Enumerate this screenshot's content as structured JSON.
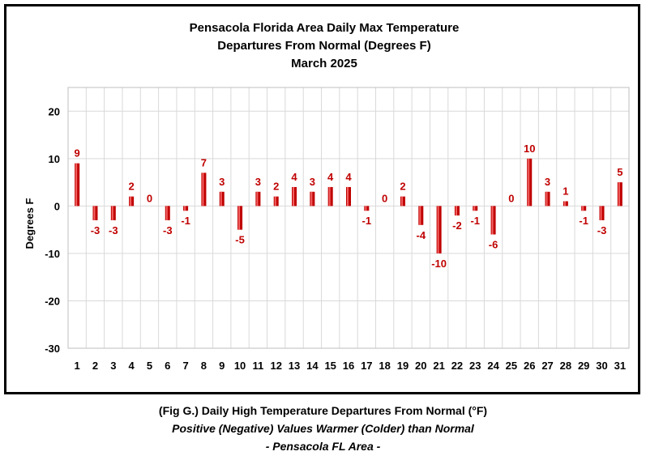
{
  "chart_data": {
    "type": "bar",
    "title": [
      "Pensacola Florida Area Daily Max Temperature",
      "Departures From Normal (Degrees F)",
      "March 2025"
    ],
    "xlabel": "",
    "ylabel": "Degrees F",
    "categories": [
      "1",
      "2",
      "3",
      "4",
      "5",
      "6",
      "7",
      "8",
      "9",
      "10",
      "11",
      "12",
      "13",
      "14",
      "15",
      "16",
      "17",
      "18",
      "19",
      "20",
      "21",
      "22",
      "23",
      "24",
      "25",
      "26",
      "27",
      "28",
      "29",
      "30",
      "31"
    ],
    "values": [
      9,
      -3,
      -3,
      2,
      0,
      -3,
      -1,
      7,
      3,
      -5,
      3,
      2,
      4,
      3,
      4,
      4,
      -1,
      0,
      2,
      -4,
      -10,
      -2,
      -1,
      -6,
      0,
      10,
      3,
      1,
      -1,
      -3,
      5
    ],
    "ylim": [
      -30,
      25
    ],
    "yticks": [
      -30,
      -20,
      -10,
      0,
      10,
      20
    ],
    "grid": true,
    "bar_color": "#c00000",
    "label_color": "#c00000"
  },
  "caption": {
    "line1": "(Fig G.) Daily High Temperature Departures From Normal (°F)",
    "line2": "Positive (Negative) Values Warmer (Colder) than Normal",
    "line3": "- Pensacola FL Area -"
  }
}
